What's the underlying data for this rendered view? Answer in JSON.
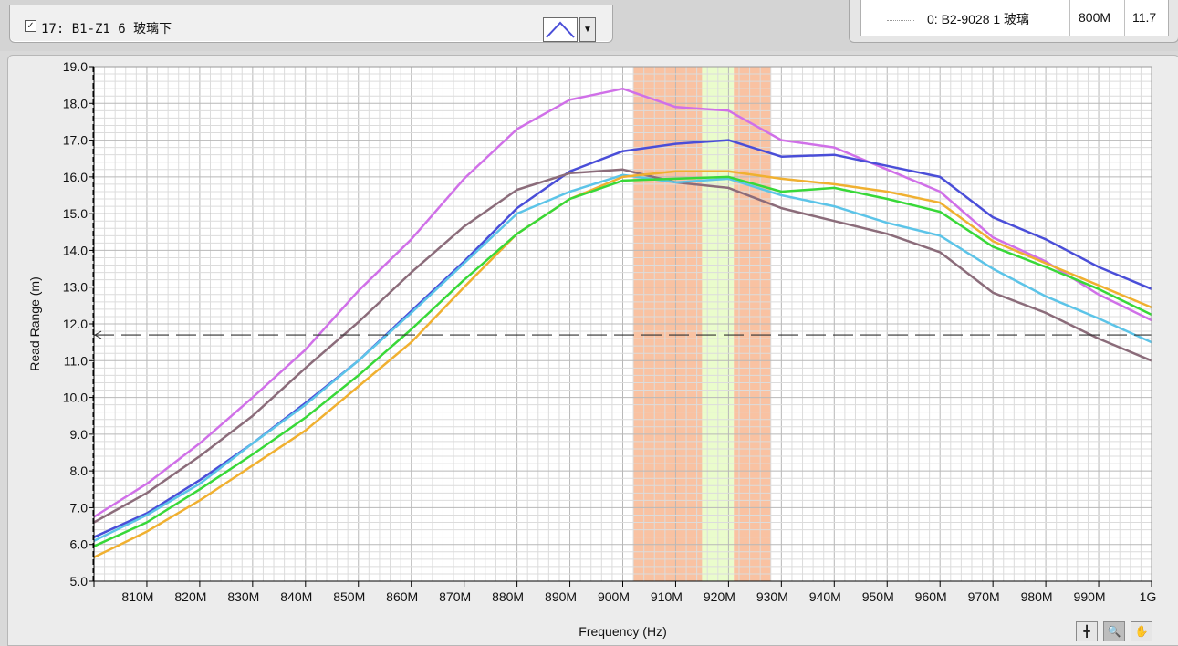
{
  "plot_selector": {
    "checked": true,
    "check_mark": "✓",
    "label": "17: B1-Z1 6 玻璃下",
    "style_icon": "line-style-icon",
    "dropdown_glyph": "▼"
  },
  "legend": {
    "name": "0: B2-9028 1 玻璃",
    "freq": "800M",
    "value": "11.7"
  },
  "tools": {
    "cursor": "╋",
    "zoom": "🔍",
    "pan": "✋"
  },
  "colors": {
    "band_outer": "#f9c2a2",
    "band_center": "#eafccc",
    "threshold_line": "#303030"
  },
  "chart_data": {
    "type": "line",
    "xlabel": "Frequency (Hz)",
    "ylabel": "Read Range (m)",
    "xlim": [
      800,
      1000
    ],
    "ylim": [
      5,
      19
    ],
    "x_ticks": [
      810,
      820,
      830,
      840,
      850,
      860,
      870,
      880,
      890,
      900,
      910,
      920,
      930,
      940,
      950,
      960,
      970,
      980,
      990,
      1000
    ],
    "x_tick_labels": [
      "810M",
      "820M",
      "830M",
      "840M",
      "850M",
      "860M",
      "870M",
      "880M",
      "890M",
      "900M",
      "910M",
      "920M",
      "930M",
      "940M",
      "950M",
      "960M",
      "970M",
      "980M",
      "990M",
      "1G"
    ],
    "y_ticks": [
      5,
      6,
      7,
      8,
      9,
      10,
      11,
      12,
      13,
      14,
      15,
      16,
      17,
      18,
      19
    ],
    "y_tick_labels": [
      "5.0",
      "6.0",
      "7.0",
      "8.0",
      "9.0",
      "10.0",
      "11.0",
      "12.0",
      "13.0",
      "14.0",
      "15.0",
      "16.0",
      "17.0",
      "18.0",
      "19.0"
    ],
    "grid": true,
    "threshold": 11.7,
    "bands": [
      {
        "x0": 902,
        "x1": 915,
        "color": "#f9c2a2"
      },
      {
        "x0": 915,
        "x1": 921,
        "color": "#eafccc"
      },
      {
        "x0": 921,
        "x1": 928,
        "color": "#f9c2a2"
      }
    ],
    "x": [
      800,
      810,
      820,
      830,
      840,
      850,
      860,
      870,
      880,
      890,
      900,
      910,
      920,
      930,
      940,
      950,
      960,
      970,
      980,
      990,
      1000
    ],
    "series": [
      {
        "color": "#d070e8",
        "values": [
          6.75,
          7.65,
          8.75,
          10.0,
          11.3,
          12.9,
          14.3,
          15.95,
          17.3,
          18.1,
          18.4,
          17.9,
          17.8,
          17.0,
          16.8,
          16.2,
          15.6,
          14.35,
          13.7,
          12.8,
          12.1
        ]
      },
      {
        "color": "#4a4ed8",
        "values": [
          6.2,
          6.85,
          7.75,
          8.75,
          9.85,
          11.0,
          12.35,
          13.7,
          15.15,
          16.15,
          16.7,
          16.9,
          17.0,
          16.55,
          16.6,
          16.3,
          16.0,
          14.9,
          14.3,
          13.55,
          12.95
        ]
      },
      {
        "color": "#8b6c7a",
        "values": [
          6.6,
          7.4,
          8.4,
          9.5,
          10.8,
          12.05,
          13.4,
          14.65,
          15.65,
          16.1,
          16.2,
          15.85,
          15.7,
          15.15,
          14.8,
          14.45,
          13.95,
          12.85,
          12.3,
          11.6,
          11.0
        ]
      },
      {
        "color": "#5cc4e8",
        "values": [
          6.1,
          6.8,
          7.65,
          8.75,
          9.8,
          11.0,
          12.3,
          13.65,
          15.0,
          15.6,
          16.05,
          15.85,
          15.95,
          15.5,
          15.2,
          14.75,
          14.4,
          13.5,
          12.75,
          12.15,
          11.5
        ]
      },
      {
        "color": "#f0b030",
        "values": [
          5.65,
          6.35,
          7.2,
          8.15,
          9.1,
          10.3,
          11.5,
          13.0,
          14.45,
          15.4,
          16.0,
          16.15,
          16.15,
          15.95,
          15.8,
          15.6,
          15.3,
          14.25,
          13.65,
          13.05,
          12.45
        ]
      },
      {
        "color": "#38d838",
        "values": [
          5.95,
          6.6,
          7.5,
          8.45,
          9.45,
          10.6,
          11.85,
          13.2,
          14.45,
          15.4,
          15.9,
          15.95,
          16.0,
          15.6,
          15.7,
          15.4,
          15.05,
          14.1,
          13.55,
          12.95,
          12.25
        ]
      }
    ]
  }
}
